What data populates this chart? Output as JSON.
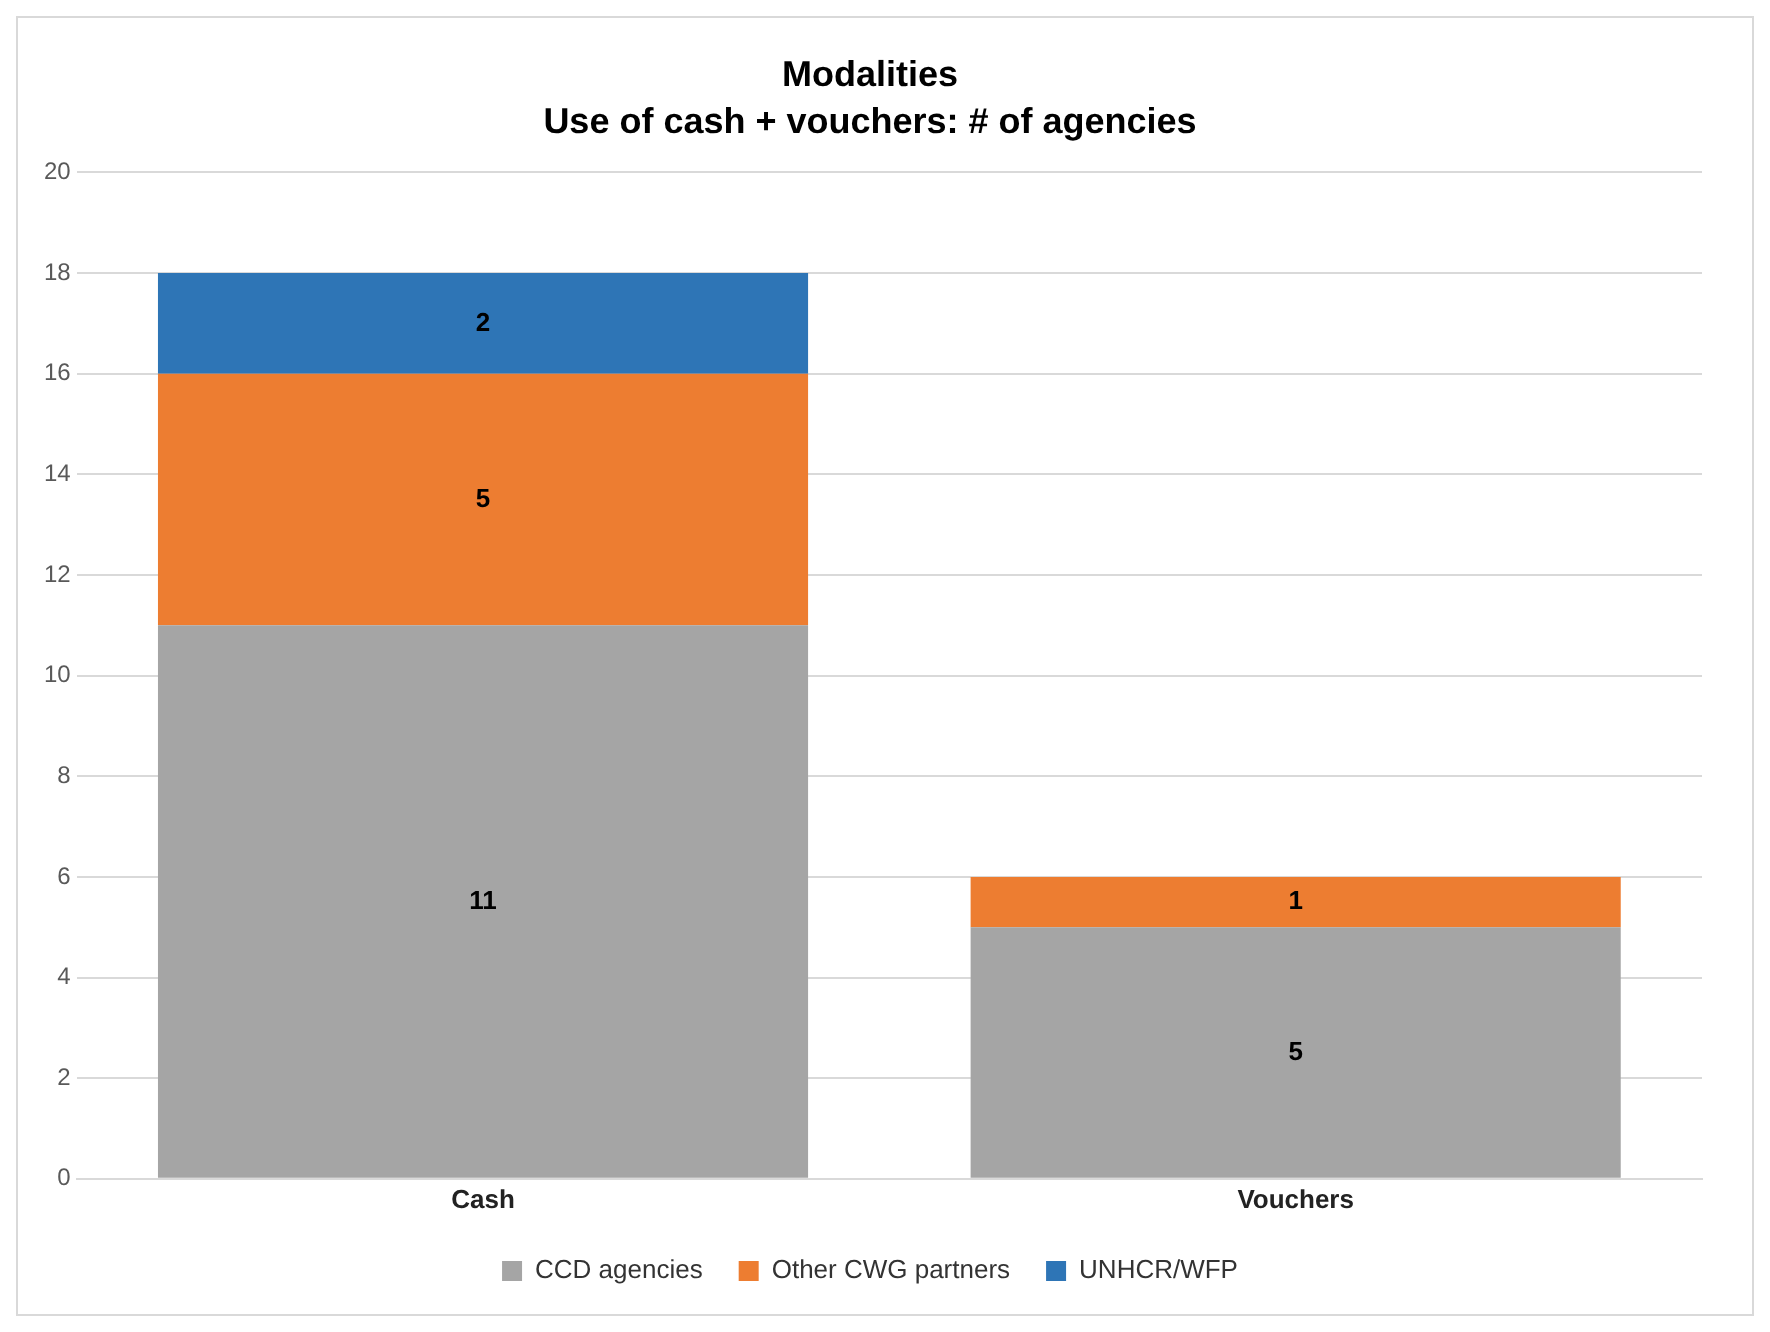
{
  "chart_data": {
    "type": "bar",
    "title": "Modalities",
    "subtitle": "Use of cash + vouchers: # of agencies",
    "categories": [
      "Cash",
      "Vouchers"
    ],
    "series": [
      {
        "name": "CCD agencies",
        "color": "#a5a5a5",
        "values": [
          11,
          5
        ]
      },
      {
        "name": "Other CWG partners",
        "color": "#ed7d31",
        "values": [
          5,
          1
        ]
      },
      {
        "name": "UNHCR/WFP",
        "color": "#2e75b6",
        "values": [
          2,
          null
        ]
      }
    ],
    "stacked": true,
    "ylim": [
      0,
      20
    ],
    "yticks": [
      0,
      2,
      4,
      6,
      8,
      10,
      12,
      14,
      16,
      18,
      20
    ],
    "grid": "y",
    "legend": "bottom",
    "data_labels": true
  }
}
